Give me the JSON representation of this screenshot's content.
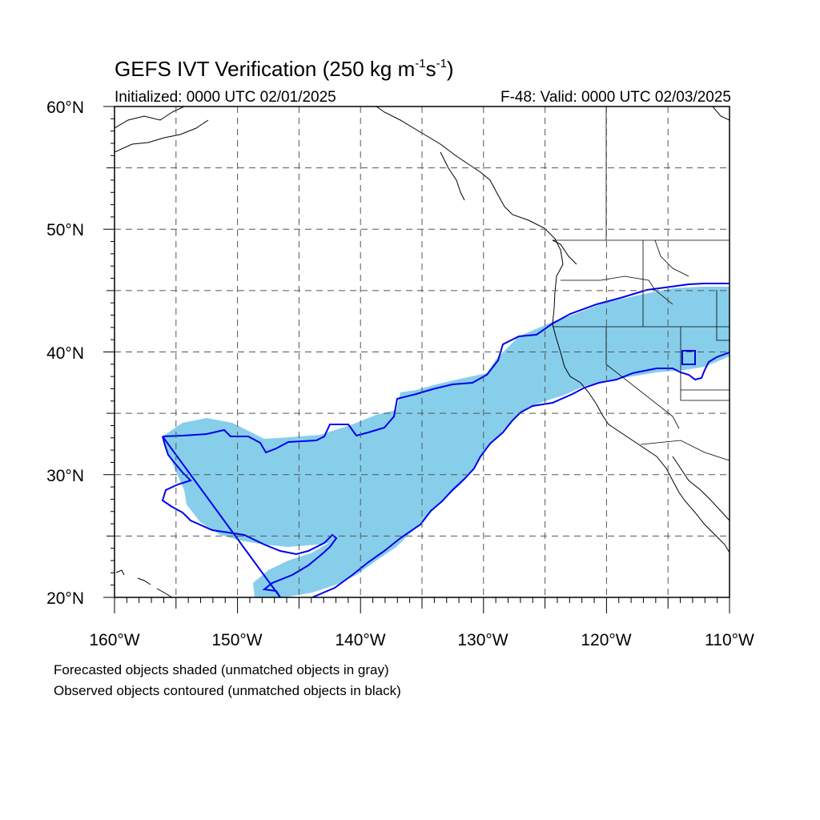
{
  "title": {
    "main": "GEFS IVT Verification (250 kg m",
    "sup1": "-1",
    "mid": "s",
    "sup2": "-1",
    "close": ")"
  },
  "subtitle": {
    "left": "Initialized: 0000 UTC 02/01/2025",
    "right": "F-48: Valid: 0000 UTC 02/03/2025"
  },
  "map": {
    "lon_range": [
      -160,
      -110
    ],
    "lat_range": [
      20,
      60
    ],
    "lon_labels": [
      "160°W",
      "150°W",
      "140°W",
      "130°W",
      "120°W",
      "110°W"
    ],
    "lat_labels": [
      "20°N",
      "30°N",
      "40°N",
      "50°N",
      "60°N"
    ],
    "grid": "dashed every 5 degrees",
    "forecast_color": "#87ceeb",
    "observed_color": "#0000ee"
  },
  "captions": {
    "line1": "Forecasted objects shaded (unmatched objects in gray)",
    "line2": "Observed objects contoured (unmatched objects in black)"
  }
}
